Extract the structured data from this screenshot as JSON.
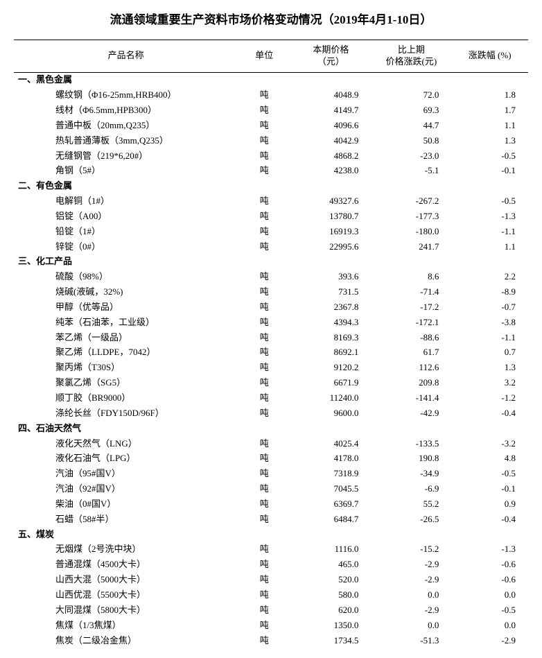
{
  "title": "流通领域重要生产资料市场价格变动情况（2019年4月1-10日）",
  "columns": {
    "name": "产品名称",
    "unit": "单位",
    "price": "本期价格\n（元）",
    "change": "比上期\n价格涨跌(元)",
    "pct": "涨跌幅 (%)"
  },
  "sections": [
    {
      "label": "一、黑色金属",
      "rows": [
        {
          "name": "螺纹钢（Φ16-25mm,HRB400）",
          "unit": "吨",
          "price": "4048.9",
          "change": "72.0",
          "pct": "1.8"
        },
        {
          "name": "线材（Φ6.5mm,HPB300）",
          "unit": "吨",
          "price": "4149.7",
          "change": "69.3",
          "pct": "1.7"
        },
        {
          "name": "普通中板（20mm,Q235）",
          "unit": "吨",
          "price": "4096.6",
          "change": "44.7",
          "pct": "1.1"
        },
        {
          "name": "热轧普通薄板（3mm,Q235）",
          "unit": "吨",
          "price": "4042.9",
          "change": "50.8",
          "pct": "1.3"
        },
        {
          "name": "无缝钢管（219*6,20#）",
          "unit": "吨",
          "price": "4868.2",
          "change": "-23.0",
          "pct": "-0.5"
        },
        {
          "name": "角钢（5#）",
          "unit": "吨",
          "price": "4238.0",
          "change": "-5.1",
          "pct": "-0.1"
        }
      ]
    },
    {
      "label": "二、有色金属",
      "rows": [
        {
          "name": "电解铜（1#）",
          "unit": "吨",
          "price": "49327.6",
          "change": "-267.2",
          "pct": "-0.5"
        },
        {
          "name": "铝锭（A00）",
          "unit": "吨",
          "price": "13780.7",
          "change": "-177.3",
          "pct": "-1.3"
        },
        {
          "name": "铅锭（1#）",
          "unit": "吨",
          "price": "16919.3",
          "change": "-180.0",
          "pct": "-1.1"
        },
        {
          "name": "锌锭（0#）",
          "unit": "吨",
          "price": "22995.6",
          "change": "241.7",
          "pct": "1.1"
        }
      ]
    },
    {
      "label": "三、化工产品",
      "rows": [
        {
          "name": "硫酸（98%）",
          "unit": "吨",
          "price": "393.6",
          "change": "8.6",
          "pct": "2.2"
        },
        {
          "name": "烧碱(液碱，32%)",
          "unit": "吨",
          "price": "731.5",
          "change": "-71.4",
          "pct": "-8.9"
        },
        {
          "name": "甲醇（优等品）",
          "unit": "吨",
          "price": "2367.8",
          "change": "-17.2",
          "pct": "-0.7"
        },
        {
          "name": "纯苯（石油苯，工业级）",
          "unit": "吨",
          "price": "4394.3",
          "change": "-172.1",
          "pct": "-3.8"
        },
        {
          "name": "苯乙烯（一级品）",
          "unit": "吨",
          "price": "8169.3",
          "change": "-88.6",
          "pct": "-1.1"
        },
        {
          "name": "聚乙烯（LLDPE，7042）",
          "unit": "吨",
          "price": "8692.1",
          "change": "61.7",
          "pct": "0.7"
        },
        {
          "name": "聚丙烯（T30S）",
          "unit": "吨",
          "price": "9120.2",
          "change": "112.6",
          "pct": "1.3"
        },
        {
          "name": "聚氯乙烯（SG5）",
          "unit": "吨",
          "price": "6671.9",
          "change": "209.8",
          "pct": "3.2"
        },
        {
          "name": "顺丁胶（BR9000）",
          "unit": "吨",
          "price": "11240.0",
          "change": "-141.4",
          "pct": "-1.2"
        },
        {
          "name": "涤纶长丝（FDY150D/96F）",
          "unit": "吨",
          "price": "9600.0",
          "change": "-42.9",
          "pct": "-0.4"
        }
      ]
    },
    {
      "label": "四、石油天然气",
      "rows": [
        {
          "name": "液化天然气（LNG）",
          "unit": "吨",
          "price": "4025.4",
          "change": "-133.5",
          "pct": "-3.2"
        },
        {
          "name": "液化石油气（LPG）",
          "unit": "吨",
          "price": "4178.0",
          "change": "190.8",
          "pct": "4.8"
        },
        {
          "name": "汽油（95#国V）",
          "unit": "吨",
          "price": "7318.9",
          "change": "-34.9",
          "pct": "-0.5"
        },
        {
          "name": "汽油（92#国V）",
          "unit": "吨",
          "price": "7045.5",
          "change": "-6.9",
          "pct": "-0.1"
        },
        {
          "name": "柴油（0#国V）",
          "unit": "吨",
          "price": "6369.7",
          "change": "55.2",
          "pct": "0.9"
        },
        {
          "name": "石蜡（58#半）",
          "unit": "吨",
          "price": "6484.7",
          "change": "-26.5",
          "pct": "-0.4"
        }
      ]
    },
    {
      "label": "五、煤炭",
      "rows": [
        {
          "name": "无烟煤（2号洗中块）",
          "unit": "吨",
          "price": "1116.0",
          "change": "-15.2",
          "pct": "-1.3"
        },
        {
          "name": "普通混煤（4500大卡）",
          "unit": "吨",
          "price": "465.0",
          "change": "-2.9",
          "pct": "-0.6"
        },
        {
          "name": "山西大混（5000大卡）",
          "unit": "吨",
          "price": "520.0",
          "change": "-2.9",
          "pct": "-0.6"
        },
        {
          "name": "山西优混（5500大卡）",
          "unit": "吨",
          "price": "580.0",
          "change": "0.0",
          "pct": "0.0"
        },
        {
          "name": "大同混煤（5800大卡）",
          "unit": "吨",
          "price": "620.0",
          "change": "-2.9",
          "pct": "-0.5"
        },
        {
          "name": "焦煤（1/3焦煤）",
          "unit": "吨",
          "price": "1350.0",
          "change": "0.0",
          "pct": "0.0"
        },
        {
          "name": "焦炭（二级冶金焦）",
          "unit": "吨",
          "price": "1734.5",
          "change": "-51.3",
          "pct": "-2.9"
        }
      ]
    }
  ],
  "style": {
    "background_color": "#ffffff",
    "text_color": "#000000",
    "border_color": "#000000",
    "title_fontsize": 17,
    "body_fontsize": 13
  }
}
